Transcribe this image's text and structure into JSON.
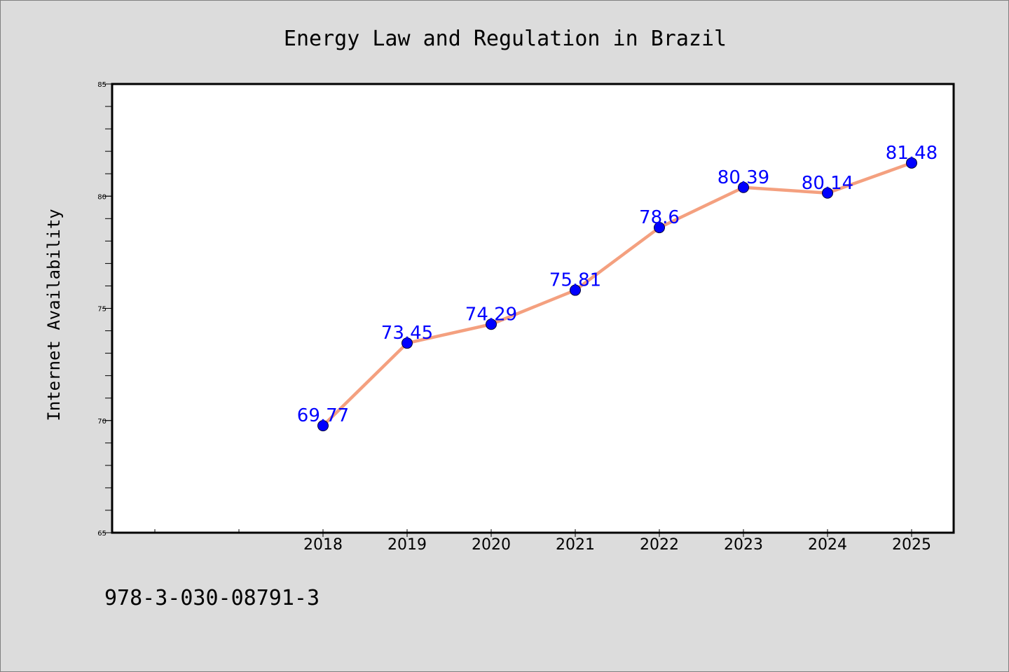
{
  "chart_data": {
    "type": "line",
    "title": "Energy Law and Regulation in Brazil",
    "xlabel": "",
    "ylabel": "Internet Availability",
    "categories": [
      "2018",
      "2019",
      "2020",
      "2021",
      "2022",
      "2023",
      "2024",
      "2025"
    ],
    "series": [
      {
        "values": [
          69.77,
          73.45,
          74.29,
          75.81,
          78.6,
          80.39,
          80.14,
          81.48
        ],
        "labels": [
          "69.77",
          "73.45",
          "74.29",
          "75.81",
          "78.6",
          "80.39",
          "80.14",
          "81.48"
        ],
        "line_color": "#f4a07f",
        "marker_color": "#0000ff"
      }
    ],
    "ylim": [
      65,
      85
    ],
    "yticks": [
      "65",
      "70",
      "75",
      "80",
      "85"
    ],
    "grid": false,
    "legend": "none"
  },
  "footer": {
    "isbn": "978-3-030-08791-3"
  },
  "colors": {
    "background": "#dcdcdc",
    "plot_area": "#ffffff",
    "label_color": "#0000ff"
  }
}
